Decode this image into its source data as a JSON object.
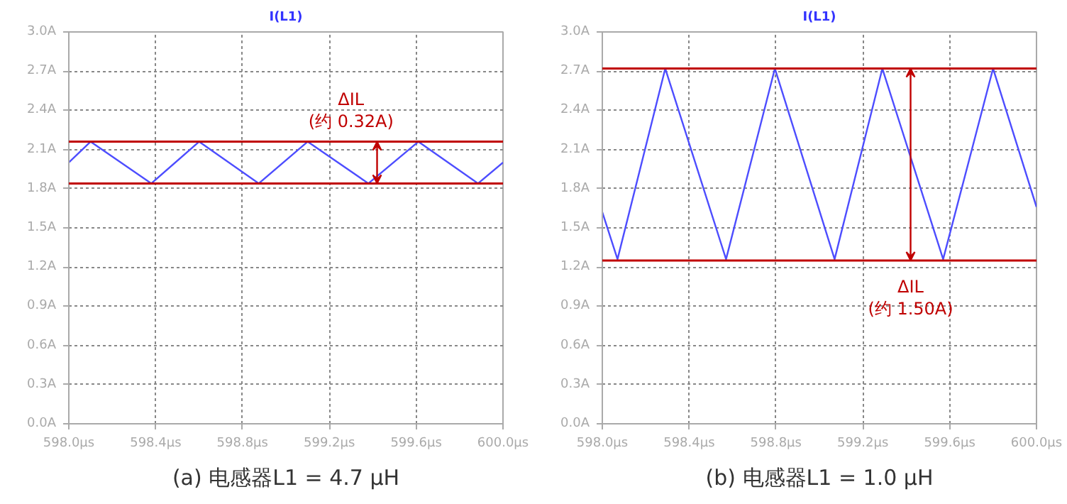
{
  "chart_data": [
    {
      "type": "line",
      "title": "I(L1)",
      "x": [
        598.0,
        598.1,
        598.38,
        598.6,
        598.875,
        599.1,
        599.38,
        599.61,
        599.885,
        600.0
      ],
      "series": [
        {
          "color": "#4d4dff",
          "values": [
            2.0,
            2.16,
            1.84,
            2.16,
            1.84,
            2.16,
            1.84,
            2.16,
            1.84,
            2.0
          ]
        }
      ],
      "xlim": [
        598.0,
        600.0
      ],
      "ylim": [
        0.0,
        3.0
      ],
      "xticks": [
        {
          "value": 598.0,
          "label": "598.0µs"
        },
        {
          "value": 598.4,
          "label": "598.4µs"
        },
        {
          "value": 598.8,
          "label": "598.8µs"
        },
        {
          "value": 599.2,
          "label": "599.2µs"
        },
        {
          "value": 599.6,
          "label": "599.6µs"
        },
        {
          "value": 600.0,
          "label": "600.0µs"
        }
      ],
      "yticks": [
        {
          "value": 0.0,
          "label": "0.0A"
        },
        {
          "value": 0.3,
          "label": "0.3A"
        },
        {
          "value": 0.6,
          "label": "0.6A"
        },
        {
          "value": 0.9,
          "label": "0.9A"
        },
        {
          "value": 1.2,
          "label": "1.2A"
        },
        {
          "value": 1.5,
          "label": "1.5A"
        },
        {
          "value": 1.8,
          "label": "1.8A"
        },
        {
          "value": 2.1,
          "label": "2.1A"
        },
        {
          "value": 2.4,
          "label": "2.4A"
        },
        {
          "value": 2.7,
          "label": "2.7A"
        },
        {
          "value": 3.0,
          "label": "3.0A"
        }
      ],
      "ref_lines": [
        {
          "axis": "y",
          "value": 2.16,
          "color": "#c00000"
        },
        {
          "axis": "y",
          "value": 1.84,
          "color": "#c00000"
        }
      ],
      "annotations": [
        {
          "text": "ΔIL\n(约 0.32A)",
          "x": 599.3,
          "y": 2.16
        },
        "(a) 电感器L1 = 4.7 μH"
      ],
      "grid": true,
      "marker": "none",
      "line_style": "solid"
    },
    {
      "type": "line",
      "title": "I(L1)",
      "x": [
        598.0,
        598.07,
        598.29,
        598.57,
        598.795,
        599.07,
        599.29,
        599.57,
        599.8,
        600.0
      ],
      "series": [
        {
          "color": "#4d4dff",
          "values": [
            1.62,
            1.26,
            2.72,
            1.26,
            2.72,
            1.26,
            2.72,
            1.26,
            2.72,
            1.66
          ]
        }
      ],
      "xlim": [
        598.0,
        600.0
      ],
      "ylim": [
        0.0,
        3.0
      ],
      "xticks": [
        {
          "value": 598.0,
          "label": "598.0µs"
        },
        {
          "value": 598.4,
          "label": "598.4µs"
        },
        {
          "value": 598.8,
          "label": "598.8µs"
        },
        {
          "value": 599.2,
          "label": "599.2µs"
        },
        {
          "value": 599.6,
          "label": "599.6µs"
        },
        {
          "value": 600.0,
          "label": "600.0µs"
        }
      ],
      "yticks": [
        {
          "value": 0.0,
          "label": "0.0A"
        },
        {
          "value": 0.3,
          "label": "0.3A"
        },
        {
          "value": 0.6,
          "label": "0.6A"
        },
        {
          "value": 0.9,
          "label": "0.9A"
        },
        {
          "value": 1.2,
          "label": "1.2A"
        },
        {
          "value": 1.5,
          "label": "1.5A"
        },
        {
          "value": 1.8,
          "label": "1.8A"
        },
        {
          "value": 2.1,
          "label": "2.1A"
        },
        {
          "value": 2.4,
          "label": "2.4A"
        },
        {
          "value": 2.7,
          "label": "2.7A"
        },
        {
          "value": 3.0,
          "label": "3.0A"
        }
      ],
      "ref_lines": [
        {
          "axis": "y",
          "value": 2.72,
          "color": "#c00000"
        },
        {
          "axis": "y",
          "value": 1.25,
          "color": "#c00000"
        }
      ],
      "annotations": [
        {
          "text": "ΔIL\n(约 1.50A)",
          "x": 599.42,
          "y": 1.25
        },
        "(b) 电感器L1 = 1.0 μH"
      ],
      "grid": true,
      "marker": "none",
      "line_style": "solid"
    }
  ]
}
